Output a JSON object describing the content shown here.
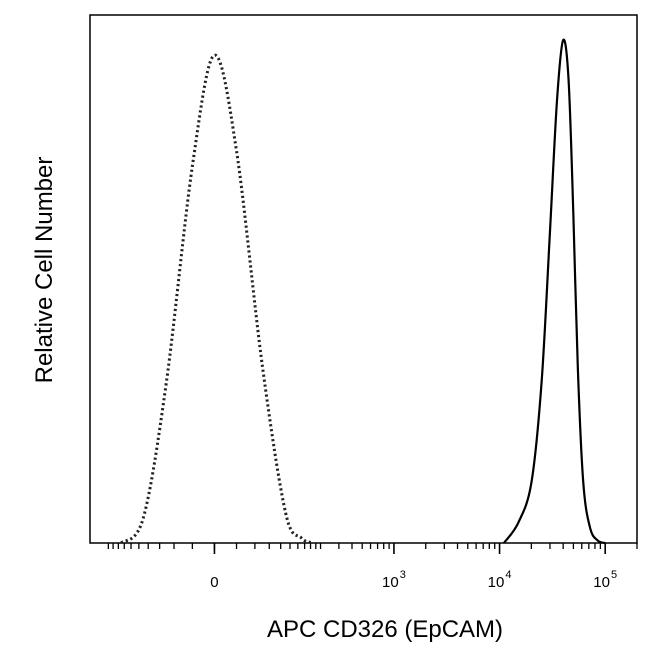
{
  "chart_data": {
    "type": "line",
    "title": "",
    "xlabel": "APC  CD326 (EpCAM)",
    "ylabel": "Relative Cell Number",
    "x_scale": "biexponential",
    "xlim": [
      -300,
      200000
    ],
    "ylim": [
      0,
      1.05
    ],
    "grid": false,
    "legend": "none",
    "x_ticks": [
      {
        "value": 0,
        "base": "0",
        "exp": ""
      },
      {
        "value": 1000,
        "base": "10",
        "exp": "3"
      },
      {
        "value": 10000,
        "base": "10",
        "exp": "4"
      },
      {
        "value": 100000,
        "base": "10",
        "exp": "5"
      }
    ],
    "series": [
      {
        "style": "dotted",
        "color": "#222222",
        "x": [
          -150,
          -90,
          -50,
          -20,
          0,
          20,
          50,
          90,
          130,
          170
        ],
        "y": [
          0.0,
          0.05,
          0.32,
          0.75,
          0.97,
          0.78,
          0.35,
          0.06,
          0.01,
          0.0
        ]
      },
      {
        "style": "solid",
        "color": "#000000",
        "x": [
          11000,
          15000,
          20000,
          25000,
          30000,
          35000,
          40000,
          45000,
          50000,
          55000,
          62000,
          72000,
          85000,
          100000
        ],
        "y": [
          0.0,
          0.04,
          0.12,
          0.32,
          0.62,
          0.88,
          1.0,
          0.92,
          0.65,
          0.35,
          0.12,
          0.03,
          0.005,
          0.0
        ]
      }
    ]
  }
}
